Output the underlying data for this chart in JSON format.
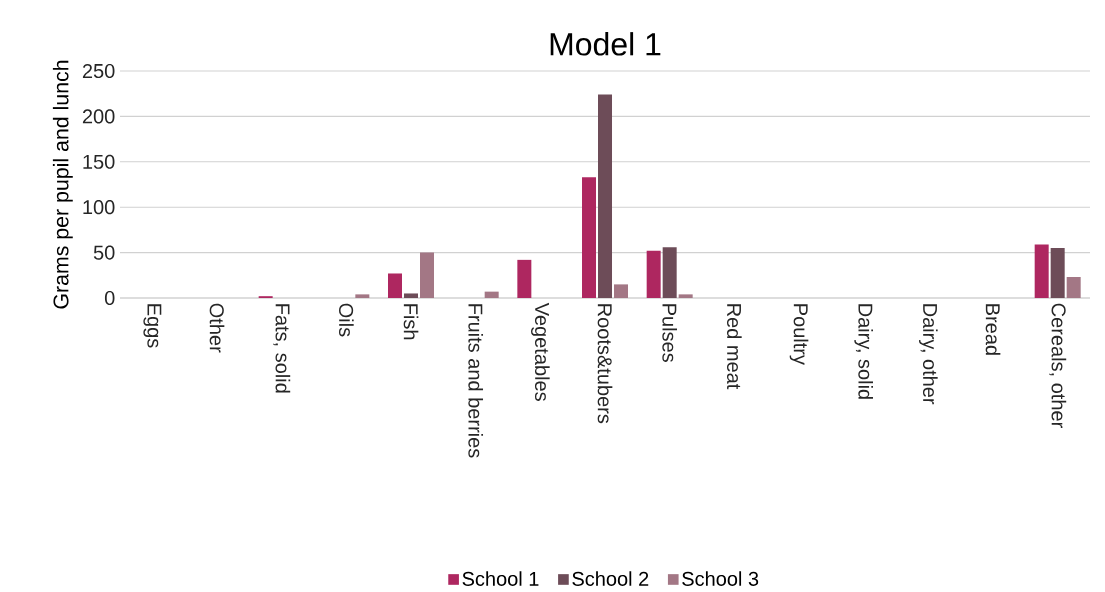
{
  "chart_data": {
    "type": "bar",
    "title": "Model 1",
    "ylabel": "Grams per pupil and lunch",
    "categories": [
      "Eggs",
      "Other",
      "Fats, solid",
      "Oils",
      "Fish",
      "Fruits and berries",
      "Vegetables",
      "Roots&tubers",
      "Pulses",
      "Red meat",
      "Poultry",
      "Dairy, solid",
      "Dairy, other",
      "Bread",
      "Cereals, other"
    ],
    "series": [
      {
        "name": "School 1",
        "color": "#ae2760",
        "values": [
          0,
          0,
          2,
          0,
          27,
          0,
          42,
          133,
          52,
          0,
          0,
          0,
          0,
          0,
          59
        ]
      },
      {
        "name": "School 2",
        "color": "#6d4c58",
        "values": [
          0,
          0,
          0,
          0,
          5,
          0,
          0,
          224,
          56,
          0,
          0,
          0,
          0,
          0,
          55
        ]
      },
      {
        "name": "School 3",
        "color": "#a37785",
        "values": [
          0,
          0,
          0,
          4,
          50,
          7,
          0,
          15,
          4,
          0,
          0,
          0,
          0,
          0,
          23
        ]
      }
    ],
    "ylim": [
      0,
      250
    ],
    "yticks": [
      0,
      50,
      100,
      150,
      200,
      250
    ],
    "grid": "y",
    "legend": "bottom"
  }
}
